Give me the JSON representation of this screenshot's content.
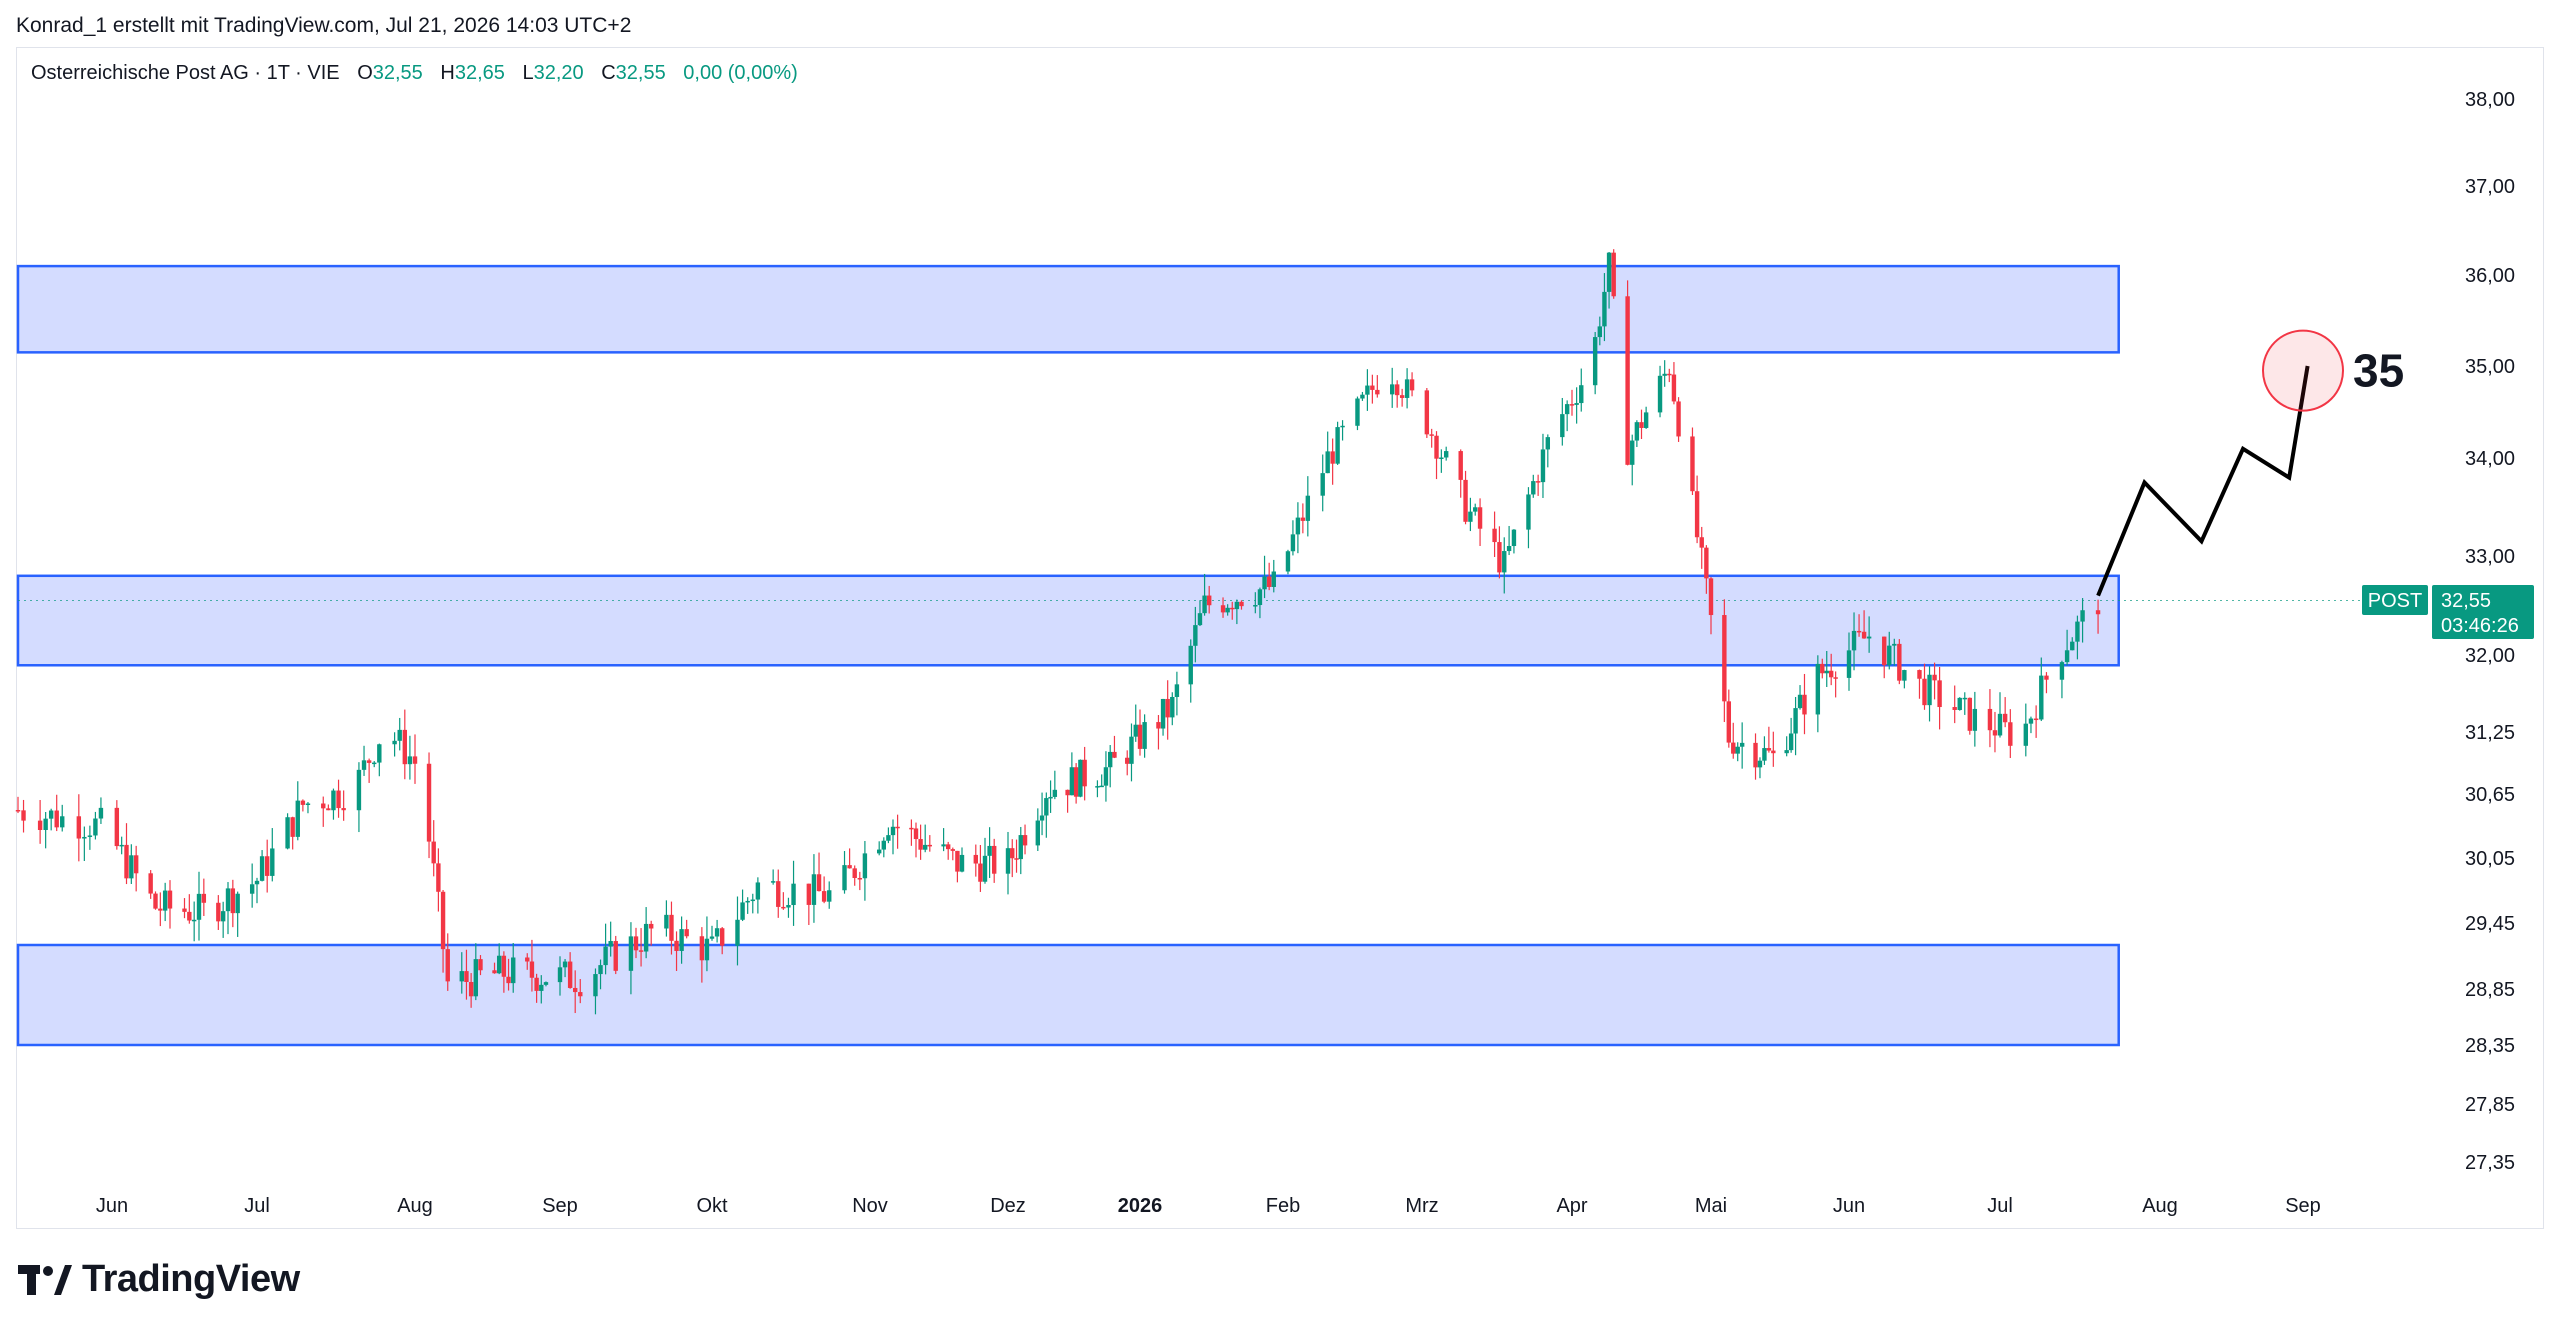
{
  "header": {
    "credit": "Konrad_1 erstellt mit TradingView.com, Jul 21, 2026 14:03 UTC+2"
  },
  "legend": {
    "symbol": "Osterreichische Post AG · 1T · VIE",
    "o_label": "O",
    "o_value": "32,55",
    "h_label": "H",
    "h_value": "32,65",
    "l_label": "L",
    "l_value": "32,20",
    "c_label": "C",
    "c_value": "32,55",
    "change": "0,00 (0,00%)"
  },
  "price_tag": {
    "symbol": "POST",
    "price": "32,55",
    "countdown": "03:46:26",
    "color": "#089981"
  },
  "target_label": "35",
  "footer": {
    "brand": "TradingView",
    "logo_icon": "tradingview-logo-icon"
  },
  "colors": {
    "up": "#089981",
    "down": "#f23645",
    "zone_fill": "#d4dcff",
    "zone_border": "#2962ff"
  },
  "chart_data": {
    "type": "candlestick",
    "price_axis": {
      "ticks": [
        27.35,
        27.85,
        28.35,
        28.85,
        29.45,
        30.05,
        30.65,
        31.25,
        32.0,
        33.0,
        34.0,
        35.0,
        36.0,
        37.0,
        38.0
      ],
      "tick_labels": [
        "27,35",
        "27,85",
        "28,35",
        "28,85",
        "29,45",
        "30,05",
        "30,65",
        "31,25",
        "32,00",
        "33,00",
        "34,00",
        "35,00",
        "36,00",
        "37,00",
        "38,00"
      ],
      "side": "right"
    },
    "time_axis": {
      "ticks": [
        "2025-06-01",
        "2025-07-01",
        "2025-08-01",
        "2025-09-01",
        "2025-10-01",
        "2025-11-01",
        "2025-12-01",
        "2026-01-01",
        "2026-02-01",
        "2026-03-01",
        "2026-04-01",
        "2026-05-01",
        "2026-06-01",
        "2026-07-01",
        "2026-08-01",
        "2026-09-01"
      ],
      "tick_labels": [
        "Jun",
        "Jul",
        "Aug",
        "Sep",
        "Okt",
        "Nov",
        "Dez",
        "2026",
        "Feb",
        "Mrz",
        "Apr",
        "Mai",
        "Jun",
        "Jul",
        "Aug",
        "Sep"
      ],
      "bold": [
        "2026"
      ]
    },
    "zones": [
      {
        "start": "2025-05-15",
        "end": "2026-07-24",
        "low": 35.15,
        "high": 36.1
      },
      {
        "start": "2025-05-15",
        "end": "2026-07-24",
        "low": 31.9,
        "high": 32.8
      },
      {
        "start": "2025-05-15",
        "end": "2026-07-24",
        "low": 28.35,
        "high": 29.25
      }
    ],
    "last_price": 32.55,
    "projection": [
      {
        "date": "2026-07-20",
        "price": 32.6
      },
      {
        "date": "2026-07-29",
        "price": 33.75
      },
      {
        "date": "2026-08-10",
        "price": 33.15
      },
      {
        "date": "2026-08-19",
        "price": 34.1
      },
      {
        "date": "2026-08-29",
        "price": 33.8
      },
      {
        "date": "2026-09-02",
        "price": 35.0
      }
    ],
    "target": {
      "date": "2026-09-01",
      "price": 34.95
    },
    "close_path": [
      [
        "2025-05-15",
        30.5
      ],
      [
        "2025-05-30",
        30.35
      ],
      [
        "2025-06-10",
        29.6
      ],
      [
        "2025-06-20",
        29.55
      ],
      [
        "2025-07-01",
        29.85
      ],
      [
        "2025-07-10",
        30.55
      ],
      [
        "2025-07-20",
        30.7
      ],
      [
        "2025-07-26",
        31.3
      ],
      [
        "2025-08-02",
        30.9
      ],
      [
        "2025-08-08",
        28.9
      ],
      [
        "2025-08-20",
        29.0
      ],
      [
        "2025-09-05",
        28.95
      ],
      [
        "2025-09-20",
        29.4
      ],
      [
        "2025-10-01",
        29.2
      ],
      [
        "2025-10-10",
        29.8
      ],
      [
        "2025-10-25",
        29.7
      ],
      [
        "2025-11-05",
        30.4
      ],
      [
        "2025-11-20",
        30.0
      ],
      [
        "2025-12-01",
        30.0
      ],
      [
        "2025-12-10",
        30.7
      ],
      [
        "2025-12-25",
        30.9
      ],
      [
        "2026-01-08",
        31.5
      ],
      [
        "2026-01-15",
        32.5
      ],
      [
        "2026-01-30",
        32.7
      ],
      [
        "2026-02-10",
        34.0
      ],
      [
        "2026-02-22",
        35.0
      ],
      [
        "2026-03-01",
        34.5
      ],
      [
        "2026-03-10",
        33.5
      ],
      [
        "2026-03-18",
        32.9
      ],
      [
        "2026-03-28",
        34.3
      ],
      [
        "2026-04-05",
        35.0
      ],
      [
        "2026-04-09",
        36.1
      ],
      [
        "2026-04-13",
        34.1
      ],
      [
        "2026-04-22",
        35.0
      ],
      [
        "2026-04-28",
        33.2
      ],
      [
        "2026-05-05",
        31.2
      ],
      [
        "2026-05-15",
        31.0
      ],
      [
        "2026-05-25",
        31.8
      ],
      [
        "2026-06-05",
        32.2
      ],
      [
        "2026-06-15",
        31.7
      ],
      [
        "2026-06-25",
        31.4
      ],
      [
        "2026-07-05",
        31.2
      ],
      [
        "2026-07-12",
        32.0
      ],
      [
        "2026-07-20",
        32.55
      ]
    ]
  }
}
